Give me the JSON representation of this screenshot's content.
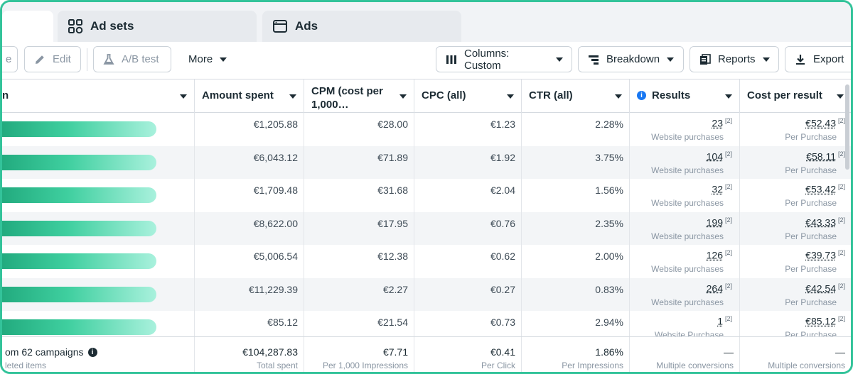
{
  "tabs": [
    {
      "label": ""
    },
    {
      "label": "Ad sets"
    },
    {
      "label": "Ads"
    }
  ],
  "toolbar": {
    "cut_label": "e",
    "edit_label": "Edit",
    "ab_test_label": "A/B test",
    "more_label": "More",
    "columns_label": "Columns: Custom",
    "breakdown_label": "Breakdown",
    "reports_label": "Reports",
    "export_label": "Export"
  },
  "headers": {
    "name": "n",
    "amount_spent": "Amount spent",
    "cpm": "CPM (cost per 1,000…",
    "cpc": "CPC (all)",
    "ctr": "CTR (all)",
    "results": "Results",
    "cost_per_result": "Cost per result"
  },
  "rows": [
    {
      "amount": "€1,205.88",
      "cpm": "€28.00",
      "cpc": "€1.23",
      "ctr": "2.28%",
      "results": "23",
      "results_sub": "Website purchases",
      "cpr": "€52.43",
      "cpr_sub": "Per Purchase"
    },
    {
      "amount": "€6,043.12",
      "cpm": "€71.89",
      "cpc": "€1.92",
      "ctr": "3.75%",
      "results": "104",
      "results_sub": "Website purchases",
      "cpr": "€58.11",
      "cpr_sub": "Per Purchase"
    },
    {
      "amount": "€1,709.48",
      "cpm": "€31.68",
      "cpc": "€2.04",
      "ctr": "1.56%",
      "results": "32",
      "results_sub": "Website purchases",
      "cpr": "€53.42",
      "cpr_sub": "Per Purchase"
    },
    {
      "amount": "€8,622.00",
      "cpm": "€17.95",
      "cpc": "€0.76",
      "ctr": "2.35%",
      "results": "199",
      "results_sub": "Website purchases",
      "cpr": "€43.33",
      "cpr_sub": "Per Purchase"
    },
    {
      "amount": "€5,006.54",
      "cpm": "€12.38",
      "cpc": "€0.62",
      "ctr": "2.00%",
      "results": "126",
      "results_sub": "Website purchases",
      "cpr": "€39.73",
      "cpr_sub": "Per Purchase"
    },
    {
      "amount": "€11,229.39",
      "cpm": "€2.27",
      "cpc": "€0.27",
      "ctr": "0.83%",
      "results": "264",
      "results_sub": "Website purchases",
      "cpr": "€42.54",
      "cpr_sub": "Per Purchase"
    },
    {
      "amount": "€85.12",
      "cpm": "€21.54",
      "cpc": "€0.73",
      "ctr": "2.94%",
      "results": "1",
      "results_sub": "Website Purchase",
      "cpr": "€85.12",
      "cpr_sub": "Per Purchase"
    }
  ],
  "results_footnote": "[2]",
  "summary": {
    "title": "om 62 campaigns",
    "subtitle": "leted items",
    "amount": "€104,287.83",
    "amount_sub": "Total spent",
    "cpm": "€7.71",
    "cpm_sub": "Per 1,000 Impressions",
    "cpc": "€0.41",
    "cpc_sub": "Per Click",
    "ctr": "1.86%",
    "ctr_sub": "Per Impressions",
    "results": "—",
    "results_sub": "Multiple conversions",
    "cpr": "—",
    "cpr_sub": "Multiple conversions"
  },
  "colors": {
    "frame": "#33c39a",
    "accent": "#1877f2",
    "name_bar": "#3fcf9f"
  }
}
